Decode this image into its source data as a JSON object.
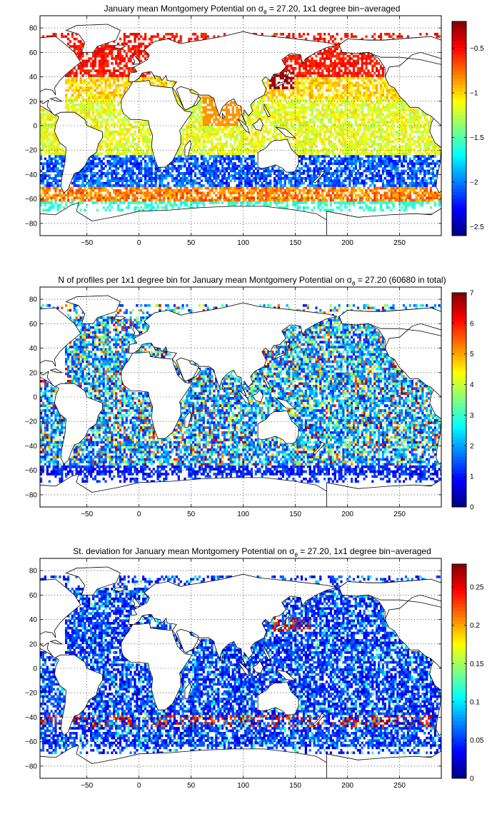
{
  "chart_data": [
    {
      "type": "heatmap",
      "title_main": "January mean Montgomery Potential on σ",
      "title_sub": "θ",
      "title_tail": " = 27.20, 1x1 degree bin−averaged",
      "xlim": [
        -95,
        290
      ],
      "ylim": [
        -90,
        90
      ],
      "xticks": [
        -50,
        0,
        50,
        100,
        150,
        200,
        250
      ],
      "yticks": [
        80,
        60,
        40,
        20,
        0,
        -20,
        -40,
        -60,
        -80
      ],
      "colorbar": {
        "range": [
          -2.6,
          -0.2
        ],
        "ticks": [
          -0.5,
          -1,
          -1.5,
          -2,
          -2.5
        ],
        "tick_labels": [
          "−0.5",
          "−1",
          "−1.5",
          "−2",
          "−2.5"
        ]
      },
      "grid": true,
      "colormap": "jet",
      "field_description_by_latitude": [
        {
          "lat_range": [
            40,
            70
          ],
          "value": -0.6
        },
        {
          "lat_range": [
            20,
            40
          ],
          "value": -1.0
        },
        {
          "lat_range": [
            -25,
            20
          ],
          "value": -1.2
        },
        {
          "lat_range": [
            -50,
            -25
          ],
          "value": -2.2
        },
        {
          "lat_range": [
            -62,
            -50
          ],
          "value": -0.8
        }
      ]
    },
    {
      "type": "heatmap",
      "title_main": "N of profiles per 1x1 degree bin for January mean Montgomery Potential on σ",
      "title_sub": "θ",
      "title_tail": " = 27.20 (60680 in total)",
      "xlim": [
        -95,
        290
      ],
      "ylim": [
        -90,
        90
      ],
      "xticks": [
        -50,
        0,
        50,
        100,
        150,
        200,
        250
      ],
      "yticks": [
        80,
        60,
        40,
        20,
        0,
        -20,
        -40,
        -60,
        -80
      ],
      "colorbar": {
        "range": [
          0,
          7
        ],
        "ticks": [
          7,
          6,
          5,
          4,
          3,
          2,
          1,
          0
        ],
        "tick_labels": [
          "7",
          "6",
          "5",
          "4",
          "3",
          "2",
          "1",
          "0"
        ]
      },
      "grid": true,
      "colormap": "jet"
    },
    {
      "type": "heatmap",
      "title_main": "St. deviation for January mean Montgomery Potential on σ",
      "title_sub": "θ",
      "title_tail": " = 27.20, 1x1 degree bin−averaged",
      "xlim": [
        -95,
        290
      ],
      "ylim": [
        -90,
        90
      ],
      "xticks": [
        -50,
        0,
        50,
        100,
        150,
        200,
        250
      ],
      "yticks": [
        80,
        60,
        40,
        20,
        0,
        -20,
        -40,
        -60,
        -80
      ],
      "colorbar": {
        "range": [
          0,
          0.28
        ],
        "ticks": [
          0.25,
          0.2,
          0.15,
          0.1,
          0.05,
          0
        ],
        "tick_labels": [
          "0.25",
          "0.2",
          "0.15",
          "0.1",
          "0.05",
          "0"
        ]
      },
      "grid": true,
      "colormap": "jet"
    }
  ]
}
